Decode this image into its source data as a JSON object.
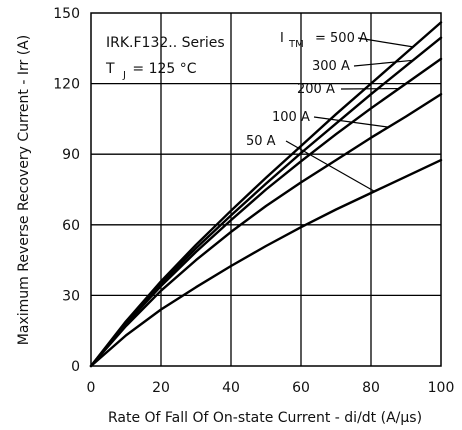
{
  "chart_data": {
    "type": "line",
    "title": "",
    "xlabel": "Rate Of Fall Of On-state Current - di/dt (A/µs)",
    "ylabel": "Maximum Reverse Recovery Current - Irr (A)",
    "xlim": [
      0,
      100
    ],
    "ylim": [
      0,
      150
    ],
    "x_ticks": [
      0,
      20,
      40,
      60,
      80,
      100
    ],
    "y_ticks": [
      0,
      30,
      60,
      90,
      120,
      150
    ],
    "grid": true,
    "annotations": {
      "series_name": "IRK.F132.. Series",
      "temperature_prefix": "T",
      "temperature_sub": "J",
      "temperature_value": "= 125 °C",
      "itm_prefix": "I",
      "itm_sub": "TM"
    },
    "x": [
      0,
      10,
      20,
      30,
      40,
      50,
      60,
      70,
      80,
      90,
      100
    ],
    "series": [
      {
        "name": "= 500 A",
        "values": [
          0,
          19,
          36,
          51.5,
          66,
          80,
          93.5,
          107,
          120,
          133,
          146
        ]
      },
      {
        "name": "300 A",
        "values": [
          0,
          18.5,
          35,
          50,
          64,
          77.5,
          90.5,
          103,
          115.5,
          127.5,
          139.5
        ]
      },
      {
        "name": "200 A",
        "values": [
          0,
          18,
          34,
          48.5,
          62,
          75,
          87,
          98.5,
          109.5,
          120,
          130.5
        ]
      },
      {
        "name": "100 A",
        "values": [
          0,
          17,
          32,
          45,
          57,
          68,
          78,
          87.5,
          97,
          106,
          115.5
        ]
      },
      {
        "name": "50 A",
        "values": [
          0,
          13,
          24,
          33.5,
          42.5,
          51,
          59,
          66.5,
          73.5,
          80.5,
          87.5
        ]
      }
    ]
  }
}
